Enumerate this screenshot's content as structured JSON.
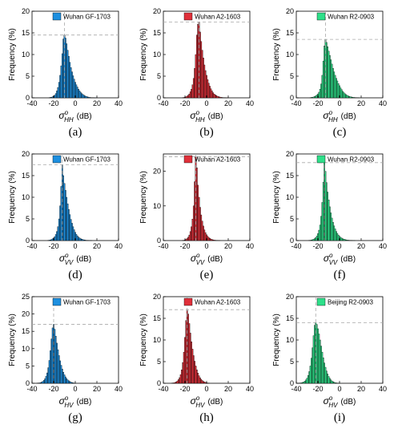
{
  "chart_data": [
    {
      "id": "a",
      "type": "bar",
      "panel_label": "(a)",
      "legend": "Wuhan GF-1703",
      "color": "#1e90e0",
      "xlabel": "(dB)",
      "sym": "σ",
      "sup": "o",
      "sub": "HH",
      "ylabel": "Frequency (%)",
      "xlim": [
        -40,
        40
      ],
      "ylim": [
        0,
        20
      ],
      "xticks": [
        -40,
        -20,
        0,
        20,
        40
      ],
      "yticks": [
        0,
        5,
        10,
        15,
        20
      ],
      "peak": {
        "x": -10,
        "y": 14.5
      },
      "bin_width": 1,
      "x": [
        -24,
        -23,
        -22,
        -21,
        -20,
        -19,
        -18,
        -17,
        -16,
        -15,
        -14,
        -13,
        -12,
        -11,
        -10,
        -9,
        -8,
        -7,
        -6,
        -5,
        -4,
        -3,
        -2,
        -1,
        0,
        1,
        2,
        3,
        4,
        5,
        6,
        7,
        8,
        9,
        10,
        11,
        12,
        13,
        14,
        15,
        16,
        17,
        18,
        19,
        20
      ],
      "values": [
        0.05,
        0.1,
        0.15,
        0.25,
        0.4,
        0.6,
        1.0,
        1.6,
        2.4,
        3.6,
        5.2,
        7.4,
        10.2,
        13.6,
        14.5,
        13.8,
        12.5,
        11.0,
        9.6,
        8.2,
        7.0,
        6.0,
        5.1,
        4.3,
        3.6,
        3.0,
        2.5,
        2.0,
        1.6,
        1.3,
        1.0,
        0.8,
        0.6,
        0.45,
        0.35,
        0.25,
        0.18,
        0.12,
        0.08,
        0.06,
        0.05,
        0.04,
        0.03,
        0.02,
        0.01
      ]
    },
    {
      "id": "b",
      "type": "bar",
      "panel_label": "(b)",
      "legend": "Wuhan A2-1603",
      "color": "#e0303a",
      "xlabel": "(dB)",
      "sym": "σ",
      "sup": "o",
      "sub": "HH",
      "ylabel": "Frequency (%)",
      "xlim": [
        -40,
        40
      ],
      "ylim": [
        0,
        20
      ],
      "xticks": [
        -40,
        -20,
        0,
        20,
        40
      ],
      "yticks": [
        0,
        5,
        10,
        15,
        20
      ],
      "peak": {
        "x": -7,
        "y": 17.5
      },
      "bin_width": 1,
      "x": [
        -22,
        -21,
        -20,
        -19,
        -18,
        -17,
        -16,
        -15,
        -14,
        -13,
        -12,
        -11,
        -10,
        -9,
        -8,
        -7,
        -6,
        -5,
        -4,
        -3,
        -2,
        -1,
        0,
        1,
        2,
        3,
        4,
        5,
        6,
        7,
        8,
        9,
        10,
        11,
        12,
        13,
        14,
        15,
        16,
        17,
        18,
        19,
        20
      ],
      "values": [
        0.05,
        0.1,
        0.15,
        0.25,
        0.4,
        0.6,
        0.9,
        1.4,
        2.0,
        3.0,
        4.5,
        6.8,
        10.0,
        14.5,
        17.0,
        17.5,
        15.2,
        13.0,
        11.0,
        9.2,
        7.6,
        6.3,
        5.2,
        4.2,
        3.4,
        2.7,
        2.1,
        1.6,
        1.2,
        0.9,
        0.7,
        0.5,
        0.38,
        0.28,
        0.2,
        0.14,
        0.1,
        0.07,
        0.05,
        0.04,
        0.03,
        0.02,
        0.01
      ]
    },
    {
      "id": "c",
      "type": "bar",
      "panel_label": "(c)",
      "legend": "Wuhan R2-0903",
      "color": "#2ee08a",
      "xlabel": "(dB)",
      "sym": "σ",
      "sup": "o",
      "sub": "HH",
      "ylabel": "Frequency (%)",
      "xlim": [
        -40,
        40
      ],
      "ylim": [
        0,
        20
      ],
      "xticks": [
        -40,
        -20,
        0,
        20,
        40
      ],
      "yticks": [
        0,
        5,
        10,
        15,
        20
      ],
      "peak": {
        "x": -13,
        "y": 13.5
      },
      "bin_width": 1,
      "x": [
        -27,
        -26,
        -25,
        -24,
        -23,
        -22,
        -21,
        -20,
        -19,
        -18,
        -17,
        -16,
        -15,
        -14,
        -13,
        -12,
        -11,
        -10,
        -9,
        -8,
        -7,
        -6,
        -5,
        -4,
        -3,
        -2,
        -1,
        0,
        1,
        2,
        3,
        4,
        5,
        6,
        7,
        8,
        9,
        10,
        11,
        12,
        13,
        14,
        15,
        16,
        17,
        18
      ],
      "values": [
        0.05,
        0.1,
        0.15,
        0.2,
        0.3,
        0.45,
        0.65,
        0.9,
        1.3,
        2.0,
        3.2,
        5.2,
        8.5,
        12.0,
        13.5,
        12.8,
        11.8,
        10.8,
        9.8,
        8.8,
        7.8,
        6.8,
        6.0,
        5.2,
        4.5,
        3.9,
        3.3,
        2.8,
        2.3,
        1.9,
        1.5,
        1.2,
        0.95,
        0.75,
        0.58,
        0.45,
        0.34,
        0.26,
        0.2,
        0.15,
        0.11,
        0.08,
        0.06,
        0.04,
        0.03,
        0.02
      ]
    },
    {
      "id": "d",
      "type": "bar",
      "panel_label": "(d)",
      "legend": "Wuhan GF-1703",
      "color": "#1e90e0",
      "xlabel": "(dB)",
      "sym": "σ",
      "sup": "o",
      "sub": "VV",
      "ylabel": "Frequency (%)",
      "xlim": [
        -40,
        40
      ],
      "ylim": [
        0,
        20
      ],
      "xticks": [
        -40,
        -20,
        0,
        20,
        40
      ],
      "yticks": [
        0,
        5,
        10,
        15,
        20
      ],
      "peak": {
        "x": -12,
        "y": 17.5
      },
      "bin_width": 1,
      "x": [
        -25,
        -24,
        -23,
        -22,
        -21,
        -20,
        -19,
        -18,
        -17,
        -16,
        -15,
        -14,
        -13,
        -12,
        -11,
        -10,
        -9,
        -8,
        -7,
        -6,
        -5,
        -4,
        -3,
        -2,
        -1,
        0,
        1,
        2,
        3,
        4,
        5,
        6,
        7,
        8,
        9,
        10,
        11,
        12,
        13,
        14,
        15
      ],
      "values": [
        0.05,
        0.1,
        0.15,
        0.25,
        0.4,
        0.6,
        0.9,
        1.4,
        2.1,
        3.2,
        5.0,
        8.0,
        12.5,
        17.5,
        15.0,
        13.2,
        11.6,
        10.0,
        8.5,
        7.2,
        6.0,
        4.9,
        4.0,
        3.2,
        2.5,
        1.9,
        1.45,
        1.1,
        0.8,
        0.6,
        0.45,
        0.33,
        0.24,
        0.17,
        0.12,
        0.08,
        0.06,
        0.04,
        0.03,
        0.02,
        0.01
      ]
    },
    {
      "id": "e",
      "type": "bar",
      "panel_label": "(e)",
      "legend": "Wuhan A2-1603",
      "color": "#e0303a",
      "xlabel": "(dB)",
      "sym": "σ",
      "sup": "o",
      "sub": "VV",
      "ylabel": "Frequency (%)",
      "xlim": [
        -40,
        40
      ],
      "ylim": [
        0,
        25
      ],
      "xticks": [
        -40,
        -20,
        0,
        20,
        40
      ],
      "yticks": [
        0,
        10,
        20
      ],
      "peak": {
        "x": -10,
        "y": 24.2
      },
      "bin_width": 1,
      "x": [
        -22,
        -21,
        -20,
        -19,
        -18,
        -17,
        -16,
        -15,
        -14,
        -13,
        -12,
        -11,
        -10,
        -9,
        -8,
        -7,
        -6,
        -5,
        -4,
        -3,
        -2,
        -1,
        0,
        1,
        2,
        3,
        4,
        5,
        6,
        7,
        8,
        9,
        10,
        11,
        12
      ],
      "values": [
        0.05,
        0.1,
        0.2,
        0.35,
        0.6,
        1.0,
        1.6,
        2.6,
        4.0,
        6.2,
        10.0,
        17.0,
        24.2,
        21.0,
        16.0,
        12.5,
        9.6,
        7.4,
        5.6,
        4.2,
        3.1,
        2.3,
        1.7,
        1.25,
        0.9,
        0.65,
        0.45,
        0.32,
        0.22,
        0.15,
        0.1,
        0.07,
        0.05,
        0.03,
        0.02
      ]
    },
    {
      "id": "f",
      "type": "bar",
      "panel_label": "(f)",
      "legend": "Wuhan R2-0903",
      "color": "#2ee08a",
      "xlabel": "(dB)",
      "sym": "σ",
      "sup": "o",
      "sub": "VV",
      "ylabel": "Frequency (%)",
      "xlim": [
        -40,
        40
      ],
      "ylim": [
        0,
        20
      ],
      "xticks": [
        -40,
        -20,
        0,
        20,
        40
      ],
      "yticks": [
        0,
        5,
        10,
        15,
        20
      ],
      "peak": {
        "x": -14,
        "y": 18.0
      },
      "bin_width": 1,
      "x": [
        -28,
        -27,
        -26,
        -25,
        -24,
        -23,
        -22,
        -21,
        -20,
        -19,
        -18,
        -17,
        -16,
        -15,
        -14,
        -13,
        -12,
        -11,
        -10,
        -9,
        -8,
        -7,
        -6,
        -5,
        -4,
        -3,
        -2,
        -1,
        0,
        1,
        2,
        3,
        4,
        5,
        6,
        7,
        8,
        9,
        10,
        11,
        12,
        13,
        14
      ],
      "values": [
        0.05,
        0.08,
        0.12,
        0.2,
        0.3,
        0.45,
        0.7,
        1.05,
        1.6,
        2.4,
        3.6,
        5.6,
        8.8,
        13.5,
        18.0,
        16.0,
        13.4,
        11.2,
        9.4,
        7.8,
        6.4,
        5.2,
        4.2,
        3.4,
        2.7,
        2.1,
        1.65,
        1.28,
        0.98,
        0.75,
        0.57,
        0.43,
        0.32,
        0.24,
        0.18,
        0.13,
        0.09,
        0.07,
        0.05,
        0.04,
        0.03,
        0.02,
        0.01
      ]
    },
    {
      "id": "g",
      "type": "bar",
      "panel_label": "(g)",
      "legend": "Wuhan GF-1703",
      "color": "#1e90e0",
      "xlabel": "(dB)",
      "sym": "σ",
      "sup": "o",
      "sub": "HV",
      "ylabel": "Frequency (%)",
      "xlim": [
        -40,
        40
      ],
      "ylim": [
        0,
        25
      ],
      "xticks": [
        -40,
        -20,
        0,
        20,
        40
      ],
      "yticks": [
        0,
        5,
        10,
        15,
        20,
        25
      ],
      "peak": {
        "x": -20,
        "y": 17.0
      },
      "bin_width": 1,
      "x": [
        -35,
        -34,
        -33,
        -32,
        -31,
        -30,
        -29,
        -28,
        -27,
        -26,
        -25,
        -24,
        -23,
        -22,
        -21,
        -20,
        -19,
        -18,
        -17,
        -16,
        -15,
        -14,
        -13,
        -12,
        -11,
        -10,
        -9,
        -8,
        -7,
        -6,
        -5,
        -4,
        -3,
        -2,
        -1,
        0
      ],
      "values": [
        0.05,
        0.08,
        0.12,
        0.2,
        0.35,
        0.55,
        0.85,
        1.3,
        2.0,
        3.0,
        4.5,
        6.6,
        9.4,
        12.8,
        16.0,
        17.0,
        15.6,
        13.6,
        11.6,
        9.7,
        8.0,
        6.5,
        5.2,
        4.1,
        3.2,
        2.45,
        1.85,
        1.38,
        1.0,
        0.72,
        0.5,
        0.34,
        0.22,
        0.14,
        0.08,
        0.04
      ]
    },
    {
      "id": "h",
      "type": "bar",
      "panel_label": "(h)",
      "legend": "Wuhan A2-1603",
      "color": "#e0303a",
      "xlabel": "(dB)",
      "sym": "σ",
      "sup": "o",
      "sub": "HV",
      "ylabel": "Frequency (%)",
      "xlim": [
        -40,
        40
      ],
      "ylim": [
        0,
        20
      ],
      "xticks": [
        -40,
        -20,
        0,
        20,
        40
      ],
      "yticks": [
        0,
        5,
        10,
        15,
        20
      ],
      "peak": {
        "x": -18,
        "y": 17.0
      },
      "bin_width": 1,
      "x": [
        -32,
        -31,
        -30,
        -29,
        -28,
        -27,
        -26,
        -25,
        -24,
        -23,
        -22,
        -21,
        -20,
        -19,
        -18,
        -17,
        -16,
        -15,
        -14,
        -13,
        -12,
        -11,
        -10,
        -9,
        -8,
        -7,
        -6,
        -5,
        -4,
        -3,
        -2,
        -1,
        0,
        1,
        2
      ],
      "values": [
        0.05,
        0.08,
        0.12,
        0.2,
        0.35,
        0.55,
        0.85,
        1.3,
        2.0,
        3.1,
        4.8,
        7.2,
        10.6,
        14.5,
        17.0,
        16.0,
        13.8,
        11.6,
        9.6,
        7.9,
        6.4,
        5.1,
        4.0,
        3.1,
        2.35,
        1.75,
        1.28,
        0.92,
        0.65,
        0.45,
        0.3,
        0.2,
        0.12,
        0.07,
        0.04
      ]
    },
    {
      "id": "i",
      "type": "bar",
      "panel_label": "(i)",
      "legend": "Beijing R2-0903",
      "color": "#2ee08a",
      "xlabel": "(dB)",
      "sym": "σ",
      "sup": "o",
      "sub": "HV",
      "ylabel": "Frequency (%)",
      "xlim": [
        -40,
        40
      ],
      "ylim": [
        0,
        20
      ],
      "xticks": [
        -40,
        -20,
        0,
        20,
        40
      ],
      "yticks": [
        0,
        5,
        10,
        15,
        20
      ],
      "peak": {
        "x": -22,
        "y": 14.0
      },
      "bin_width": 1,
      "x": [
        -38,
        -37,
        -36,
        -35,
        -34,
        -33,
        -32,
        -31,
        -30,
        -29,
        -28,
        -27,
        -26,
        -25,
        -24,
        -23,
        -22,
        -21,
        -20,
        -19,
        -18,
        -17,
        -16,
        -15,
        -14,
        -13,
        -12,
        -11,
        -10,
        -9,
        -8,
        -7,
        -6,
        -5,
        -4,
        -3,
        -2,
        -1,
        0
      ],
      "values": [
        0.03,
        0.05,
        0.08,
        0.12,
        0.2,
        0.32,
        0.5,
        0.78,
        1.2,
        1.8,
        2.7,
        4.0,
        5.8,
        8.2,
        11.0,
        13.4,
        14.0,
        13.6,
        12.6,
        11.4,
        10.0,
        8.6,
        7.2,
        5.9,
        4.7,
        3.7,
        2.85,
        2.15,
        1.58,
        1.14,
        0.8,
        0.55,
        0.37,
        0.24,
        0.15,
        0.09,
        0.05,
        0.03,
        0.02
      ]
    }
  ]
}
